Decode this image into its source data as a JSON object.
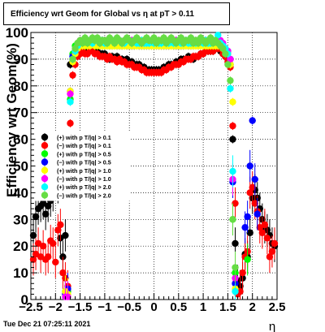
{
  "title": "Efficiency wrt Geom for Global vs   η at pT > 0.11",
  "datestamp": "Tue Dec 21 07:25:11 2021",
  "chart_data": {
    "type": "scatter",
    "title": "Efficiency wrt Geom for Global vs   η at pT > 0.11",
    "xlabel": "η",
    "ylabel": "Efficiency wrt Geom(%)",
    "xlim": [
      -2.5,
      2.5
    ],
    "ylim": [
      0,
      100
    ],
    "grid": true,
    "legend_position": "middle-left",
    "x_ticks": [
      "−2.5",
      "−2",
      "−1.5",
      "−1",
      "−0.5",
      "0",
      "0.5",
      "1",
      "1.5",
      "2",
      "2.5"
    ],
    "y_ticks": [
      "0",
      "10",
      "20",
      "30",
      "40",
      "50",
      "60",
      "70",
      "80",
      "90",
      "100"
    ],
    "x": [
      -2.45,
      -2.4,
      -2.35,
      -2.3,
      -2.25,
      -2.2,
      -2.15,
      -2.1,
      -2.05,
      -2.0,
      -1.95,
      -1.9,
      -1.85,
      -1.8,
      -1.75,
      -1.7,
      -1.65,
      -1.6,
      -1.55,
      -1.5,
      -1.45,
      -1.4,
      -1.35,
      -1.3,
      -1.25,
      -1.2,
      -1.15,
      -1.1,
      -1.05,
      -1.0,
      -0.95,
      -0.9,
      -0.85,
      -0.8,
      -0.75,
      -0.7,
      -0.65,
      -0.6,
      -0.55,
      -0.5,
      -0.45,
      -0.4,
      -0.35,
      -0.3,
      -0.25,
      -0.2,
      -0.15,
      -0.1,
      -0.05,
      0.0,
      0.05,
      0.1,
      0.15,
      0.2,
      0.25,
      0.3,
      0.35,
      0.4,
      0.45,
      0.5,
      0.55,
      0.6,
      0.65,
      0.7,
      0.75,
      0.8,
      0.85,
      0.9,
      0.95,
      1.0,
      1.05,
      1.1,
      1.15,
      1.2,
      1.25,
      1.3,
      1.35,
      1.4,
      1.45,
      1.5,
      1.55,
      1.6,
      1.65,
      1.7,
      1.75,
      1.8,
      1.85,
      1.9,
      1.95,
      2.0,
      2.05,
      2.1,
      2.15,
      2.2,
      2.25,
      2.3,
      2.35,
      2.4,
      2.45
    ],
    "series": [
      {
        "name": "(+) with p T/|q| > 0.1",
        "color": "#000000",
        "values": [
          24,
          31,
          34,
          35,
          36,
          32,
          35,
          37,
          39,
          44,
          42,
          23,
          16,
          24,
          60,
          88,
          90,
          92,
          93,
          93,
          93,
          93,
          93,
          94,
          94,
          93,
          93,
          92,
          92,
          92,
          91,
          90,
          91,
          90,
          91,
          90,
          90,
          89,
          90,
          89,
          89,
          88,
          88,
          88,
          87,
          87,
          86,
          86,
          86,
          86,
          86,
          86,
          86,
          87,
          87,
          88,
          88,
          88,
          89,
          89,
          90,
          90,
          90,
          91,
          90,
          90,
          91,
          91,
          92,
          92,
          93,
          93,
          93,
          93,
          94,
          94,
          93,
          92,
          91,
          90,
          88,
          60,
          21,
          7,
          5,
          8,
          17,
          16,
          25,
          38,
          41,
          38,
          34,
          30,
          27,
          26,
          24,
          21,
          20
        ]
      },
      {
        "name": "(−) with p T/|q| > 0.1",
        "color": "#ff0000",
        "values": [
          15,
          17,
          21,
          16,
          20,
          15,
          16,
          22,
          21,
          14,
          26,
          28,
          10,
          8,
          5,
          66,
          84,
          88,
          91,
          92,
          93,
          92,
          92,
          93,
          93,
          92,
          92,
          91,
          91,
          91,
          90,
          91,
          90,
          90,
          89,
          90,
          89,
          89,
          88,
          88,
          88,
          87,
          87,
          87,
          86,
          86,
          85,
          85,
          85,
          85,
          85,
          85,
          85,
          86,
          86,
          87,
          87,
          88,
          88,
          88,
          89,
          89,
          90,
          90,
          90,
          91,
          91,
          91,
          92,
          92,
          93,
          93,
          93,
          93,
          94,
          94,
          94,
          92,
          91,
          89,
          87,
          65,
          36,
          2,
          3,
          10,
          16,
          18,
          40,
          42,
          36,
          33,
          27,
          25,
          28,
          23,
          16,
          18,
          21
        ]
      },
      {
        "name": "(+) with p T/|q| > 0.5",
        "color": "#00ff00",
        "values": [
          null,
          null,
          null,
          null,
          null,
          null,
          null,
          null,
          null,
          null,
          null,
          null,
          null,
          3,
          3,
          75,
          92,
          95,
          96,
          96,
          97,
          97,
          97,
          96,
          97,
          97,
          97,
          96,
          97,
          97,
          96,
          96,
          97,
          97,
          96,
          97,
          96,
          96,
          96,
          97,
          96,
          97,
          96,
          96,
          96,
          97,
          96,
          96,
          96,
          96,
          97,
          96,
          96,
          96,
          97,
          96,
          96,
          96,
          97,
          96,
          96,
          97,
          96,
          96,
          97,
          96,
          97,
          96,
          96,
          97,
          97,
          96,
          97,
          97,
          96,
          97,
          96,
          95,
          94,
          92,
          88,
          30,
          10,
          null,
          null,
          null,
          null,
          15,
          null,
          null,
          null,
          null,
          null,
          null,
          null,
          null,
          null,
          null,
          null
        ]
      },
      {
        "name": "(−) with p T/|q| > 0.5",
        "color": "#0000ff",
        "values": [
          null,
          null,
          null,
          null,
          null,
          null,
          null,
          null,
          null,
          null,
          null,
          null,
          null,
          2,
          4,
          78,
          91,
          93,
          95,
          96,
          96,
          96,
          96,
          96,
          96,
          96,
          96,
          95,
          96,
          95,
          96,
          95,
          95,
          96,
          95,
          95,
          95,
          96,
          95,
          95,
          95,
          95,
          96,
          95,
          95,
          95,
          95,
          95,
          95,
          95,
          95,
          95,
          95,
          95,
          95,
          95,
          96,
          95,
          95,
          95,
          95,
          95,
          96,
          95,
          95,
          95,
          96,
          95,
          96,
          96,
          96,
          96,
          96,
          96,
          96,
          96,
          96,
          95,
          94,
          93,
          90,
          44,
          6,
          null,
          null,
          null,
          27,
          31,
          50,
          67,
          45,
          32,
          null,
          null,
          null,
          null,
          null,
          null,
          null
        ]
      },
      {
        "name": "(+) with p T/|q| > 1.0",
        "color": "#ffff00",
        "values": [
          null,
          null,
          null,
          null,
          null,
          null,
          null,
          null,
          null,
          null,
          null,
          null,
          null,
          3,
          2,
          78,
          89,
          92,
          94,
          95,
          95,
          95,
          95,
          95,
          96,
          95,
          95,
          95,
          95,
          95,
          95,
          95,
          95,
          95,
          95,
          95,
          95,
          95,
          95,
          95,
          95,
          95,
          95,
          95,
          95,
          95,
          95,
          95,
          95,
          95,
          95,
          95,
          95,
          95,
          95,
          95,
          95,
          95,
          95,
          95,
          95,
          95,
          95,
          95,
          95,
          95,
          95,
          95,
          95,
          95,
          95,
          95,
          95,
          95,
          95,
          95,
          95,
          94,
          93,
          92,
          88,
          74,
          4,
          null,
          null,
          null,
          null,
          null,
          null,
          null,
          null,
          null,
          null,
          null,
          null,
          null,
          null,
          null,
          null
        ]
      },
      {
        "name": "(−) with p T/|q| > 1.0",
        "color": "#ff00ff",
        "values": [
          null,
          null,
          null,
          null,
          null,
          null,
          null,
          null,
          null,
          null,
          null,
          null,
          null,
          1,
          1,
          77,
          90,
          93,
          95,
          97,
          97,
          97,
          97,
          97,
          97,
          97,
          97,
          96,
          97,
          97,
          97,
          97,
          97,
          96,
          97,
          97,
          96,
          97,
          97,
          97,
          97,
          97,
          97,
          97,
          96,
          97,
          97,
          97,
          97,
          97,
          97,
          97,
          97,
          97,
          97,
          97,
          97,
          97,
          97,
          97,
          97,
          97,
          97,
          97,
          97,
          97,
          97,
          97,
          97,
          97,
          97,
          97,
          97,
          97,
          97,
          97,
          97,
          96,
          94,
          93,
          90,
          45,
          8,
          null,
          null,
          null,
          null,
          null,
          null,
          null,
          null,
          null,
          null,
          null,
          null,
          null,
          null,
          null,
          null
        ]
      },
      {
        "name": "(+) with p T/|q| > 2.0",
        "color": "#00ffff",
        "values": [
          null,
          null,
          null,
          null,
          null,
          null,
          null,
          null,
          null,
          null,
          null,
          null,
          null,
          null,
          null,
          74,
          90,
          93,
          95,
          96,
          97,
          97,
          97,
          97,
          96,
          97,
          97,
          97,
          97,
          96,
          96,
          97,
          97,
          96,
          97,
          97,
          96,
          96,
          97,
          97,
          96,
          97,
          96,
          96,
          97,
          96,
          96,
          96,
          97,
          96,
          97,
          96,
          96,
          97,
          96,
          96,
          97,
          96,
          96,
          97,
          96,
          96,
          97,
          96,
          96,
          97,
          96,
          96,
          97,
          96,
          97,
          96,
          96,
          97,
          97,
          99,
          96,
          95,
          94,
          92,
          79,
          48,
          3,
          null,
          null,
          null,
          null,
          null,
          null,
          null,
          null,
          null,
          null,
          null,
          null,
          null,
          null,
          null,
          null
        ]
      },
      {
        "name": "(−) with p T/|q| > 2.0",
        "color": "#66dd44",
        "values": [
          null,
          null,
          null,
          null,
          null,
          null,
          null,
          null,
          null,
          null,
          null,
          null,
          null,
          null,
          null,
          null,
          90,
          94,
          96,
          97,
          96,
          98,
          96,
          97,
          98,
          97,
          98,
          96,
          97,
          97,
          96,
          98,
          97,
          96,
          98,
          97,
          96,
          97,
          98,
          97,
          96,
          97,
          98,
          97,
          96,
          97,
          98,
          97,
          97,
          98,
          96,
          97,
          97,
          98,
          96,
          97,
          98,
          97,
          96,
          97,
          98,
          96,
          97,
          97,
          98,
          96,
          97,
          96,
          98,
          97,
          96,
          97,
          98,
          96,
          97,
          96,
          95,
          94,
          92,
          88,
          82,
          30,
          12,
          null,
          null,
          null,
          null,
          null,
          null,
          null,
          null,
          null,
          null,
          null,
          null,
          null,
          null,
          null,
          null
        ]
      }
    ]
  }
}
